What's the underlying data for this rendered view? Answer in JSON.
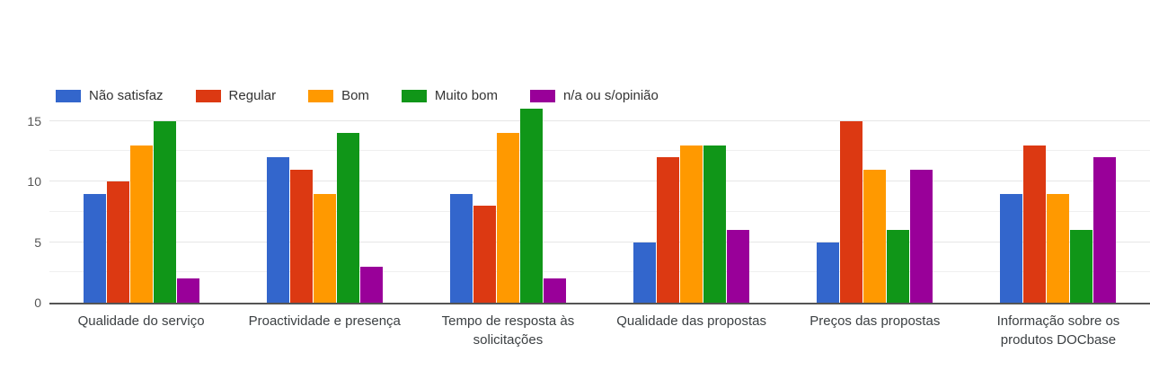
{
  "chart_data": {
    "type": "bar",
    "title": "",
    "xlabel": "",
    "ylabel": "",
    "legend_position": "top",
    "grid": true,
    "ylim": [
      0,
      16.8
    ],
    "yticks": [
      0,
      5,
      10,
      15
    ],
    "minor_gridlines": [
      2.5,
      7.5,
      12.5
    ],
    "categories": [
      "Qualidade do serviço",
      "Proactividade e presença",
      "Tempo de resposta às solicitações",
      "Qualidade das propostas",
      "Preços das propostas",
      "Informação sobre os produtos DOCbase"
    ],
    "series": [
      {
        "name": "Não satisfaz",
        "color": "#3366CC",
        "values": [
          9,
          12,
          9,
          5,
          5,
          9
        ]
      },
      {
        "name": "Regular",
        "color": "#DC3912",
        "values": [
          10,
          11,
          8,
          12,
          15,
          13
        ]
      },
      {
        "name": "Bom",
        "color": "#FF9900",
        "values": [
          13,
          9,
          14,
          13,
          11,
          9
        ]
      },
      {
        "name": "Muito bom",
        "color": "#109618",
        "values": [
          15,
          14,
          16,
          13,
          6,
          6
        ]
      },
      {
        "name": "n/a ou s/opinião",
        "color": "#990099",
        "values": [
          2,
          3,
          2,
          6,
          11,
          12
        ]
      }
    ],
    "colors": {
      "gridline": "#e6e6e6",
      "baseline": "#555555",
      "axis_text": "#555555",
      "category_text": "#3c4043",
      "legend_text": "#333333",
      "background": "#ffffff"
    }
  }
}
